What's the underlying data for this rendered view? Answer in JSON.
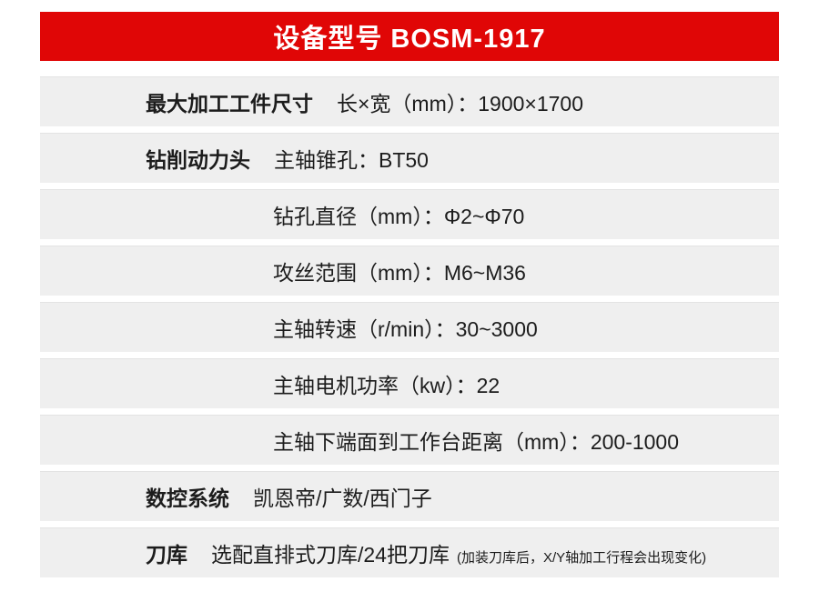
{
  "header": {
    "title": "设备型号 BOSM-1917"
  },
  "colors": {
    "header_bg": "#e00606",
    "header_text": "#ffffff",
    "row_bg": "#efefef",
    "text": "#1c1c1c"
  },
  "spec_table": {
    "rows": [
      {
        "label": "最大加工工件尺寸",
        "value": "长×宽（mm）：1900×1700"
      },
      {
        "label": "钻削动力头",
        "value": "主轴锥孔：BT50"
      },
      {
        "label": "",
        "value": "钻孔直径（mm）：Φ2~Φ70"
      },
      {
        "label": "",
        "value": "攻丝范围（mm）：M6~M36"
      },
      {
        "label": "",
        "value": "主轴转速（r/min）：30~3000"
      },
      {
        "label": "",
        "value": "主轴电机功率（kw）：22"
      },
      {
        "label": "",
        "value": "主轴下端面到工作台距离（mm）：200-1000"
      },
      {
        "label": "数控系统",
        "value": "凯恩帝/广数/西门子"
      },
      {
        "label": "刀库",
        "value": "选配直排式刀库/24把刀库",
        "note": "(加装刀库后，X/Y轴加工行程会出现变化)"
      }
    ]
  }
}
